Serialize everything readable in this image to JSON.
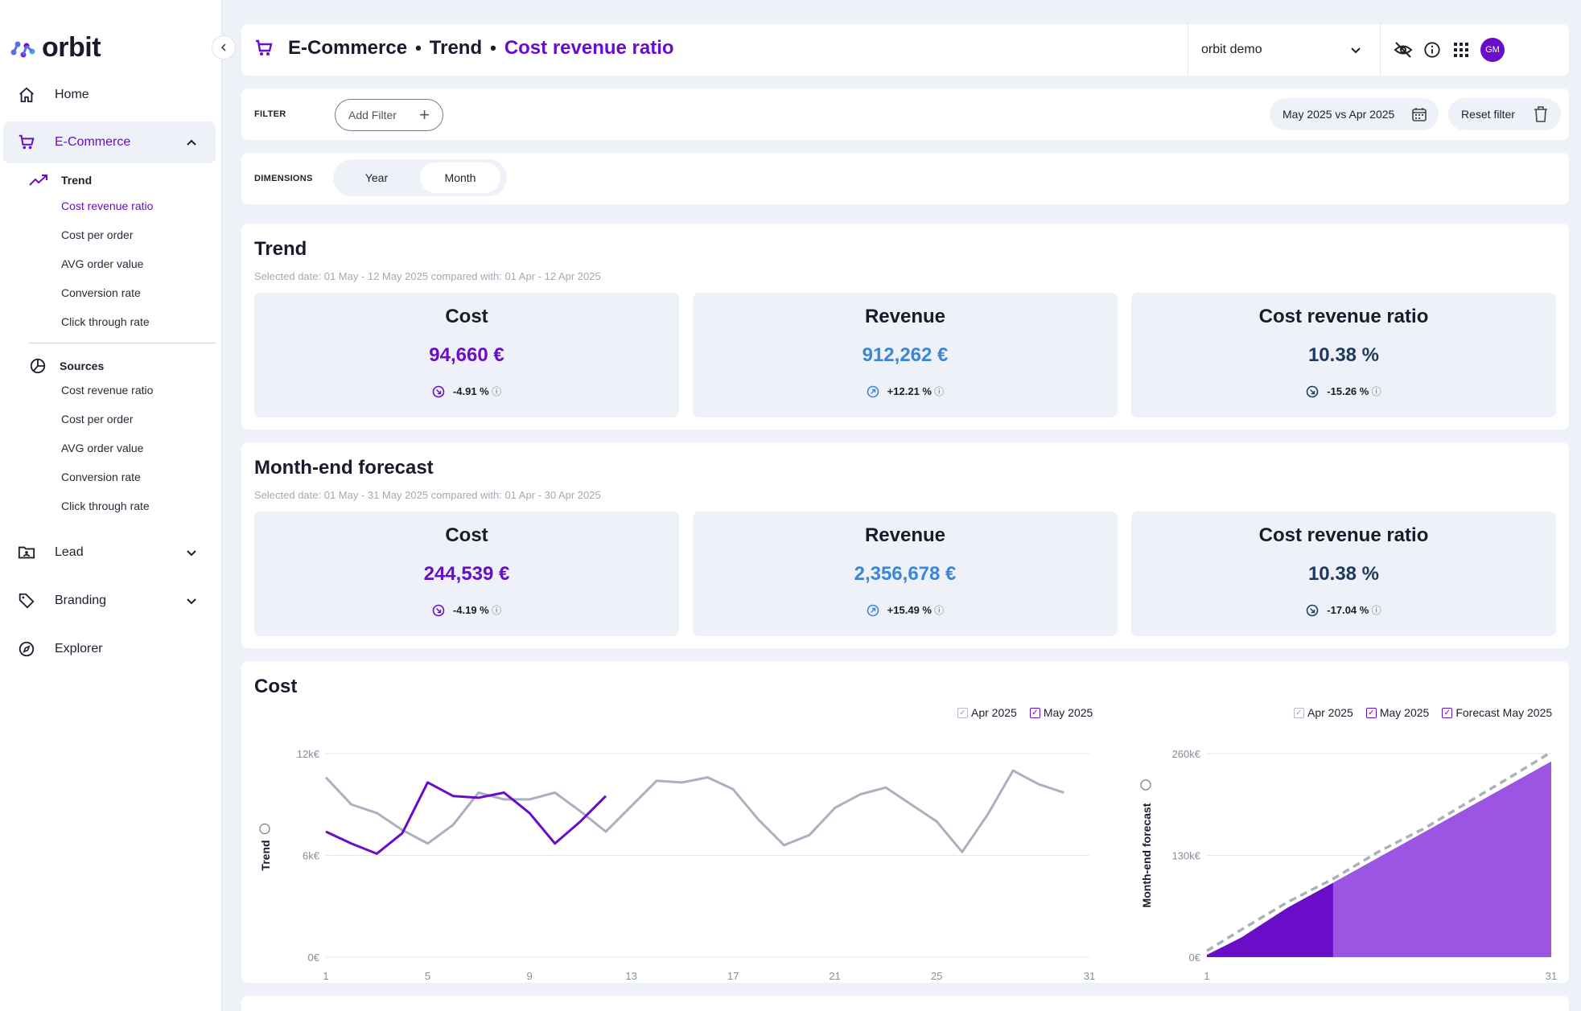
{
  "app": {
    "logo_text": "orbit"
  },
  "sidebar": {
    "items": [
      {
        "label": "Home",
        "icon": "home-icon"
      },
      {
        "label": "E-Commerce",
        "icon": "cart-icon"
      },
      {
        "label": "Lead",
        "icon": "folder-user-icon"
      },
      {
        "label": "Branding",
        "icon": "tag-icon"
      },
      {
        "label": "Explorer",
        "icon": "compass-icon"
      }
    ],
    "trend": {
      "label": "Trend",
      "items": [
        "Cost revenue ratio",
        "Cost per order",
        "AVG order value",
        "Conversion rate",
        "Click through rate"
      ]
    },
    "sources": {
      "label": "Sources",
      "items": [
        "Cost revenue ratio",
        "Cost per order",
        "AVG order value",
        "Conversion rate",
        "Click through rate"
      ]
    }
  },
  "header": {
    "crumb1": "E-Commerce",
    "sep": "•",
    "crumb2": "Trend",
    "crumb3": "Cost revenue ratio",
    "tenant": "orbit demo",
    "avatar": "GM"
  },
  "filter": {
    "label": "FILTER",
    "add_label": "Add Filter",
    "date_range": "May 2025 vs Apr 2025",
    "reset_label": "Reset filter"
  },
  "dimensions": {
    "label": "DIMENSIONS",
    "options": [
      "Year",
      "Month"
    ],
    "selected": "Month"
  },
  "trend_section": {
    "title": "Trend",
    "subtitle": "Selected date: 01 May - 12 May 2025 compared with: 01 Apr - 12 Apr 2025",
    "kpis": [
      {
        "title": "Cost",
        "value": "94,660 €",
        "delta": "-4.91 %",
        "color": "#6a0dc8"
      },
      {
        "title": "Revenue",
        "value": "912,262 €",
        "delta": "+12.21 %",
        "color": "#3b86d6"
      },
      {
        "title": "Cost revenue ratio",
        "value": "10.38 %",
        "delta": "-15.26 %",
        "color": "#1f3a5f"
      }
    ]
  },
  "forecast_section": {
    "title": "Month-end forecast",
    "subtitle": "Selected date: 01 May - 31 May 2025 compared with: 01 Apr - 30 Apr 2025",
    "kpis": [
      {
        "title": "Cost",
        "value": "244,539 €",
        "delta": "-4.19 %",
        "color": "#6a0dc8"
      },
      {
        "title": "Revenue",
        "value": "2,356,678 €",
        "delta": "+15.49 %",
        "color": "#3b86d6"
      },
      {
        "title": "Cost revenue ratio",
        "value": "10.38 %",
        "delta": "-17.04 %",
        "color": "#1f3a5f"
      }
    ]
  },
  "cost_section": {
    "title": "Cost"
  },
  "chart_data": [
    {
      "type": "line",
      "ylabel": "Trend",
      "ytick_labels": [
        "0€",
        "6k€",
        "12k€"
      ],
      "ylim": [
        0,
        12000
      ],
      "xticks": [
        1,
        5,
        9,
        13,
        17,
        21,
        25,
        31
      ],
      "xlim": [
        1,
        31
      ],
      "series": [
        {
          "name": "Apr 2025",
          "color": "#a9b1c0",
          "x": [
            1,
            2,
            3,
            4,
            5,
            6,
            7,
            8,
            9,
            10,
            11,
            12,
            13,
            14,
            15,
            16,
            17,
            18,
            19,
            20,
            21,
            22,
            23,
            24,
            25,
            26,
            27,
            28,
            29,
            30
          ],
          "values": [
            10600,
            9000,
            8500,
            7500,
            6700,
            7800,
            9700,
            9300,
            9300,
            9700,
            8600,
            7400,
            8900,
            10400,
            10300,
            10600,
            9900,
            8100,
            6600,
            7200,
            8800,
            9600,
            10000,
            9000,
            8000,
            6200,
            8400,
            11000,
            10200,
            9700
          ]
        },
        {
          "name": "May 2025",
          "color": "#6a0dc8",
          "x": [
            1,
            2,
            3,
            4,
            5,
            6,
            7,
            8,
            9,
            10,
            11,
            12
          ],
          "values": [
            7400,
            6700,
            6100,
            7300,
            10300,
            9500,
            9400,
            9700,
            8500,
            6700,
            8000,
            9500
          ]
        }
      ]
    },
    {
      "type": "area",
      "ylabel": "Month-end forecast",
      "ytick_labels": [
        "0€",
        "130k€",
        "260k€"
      ],
      "ylim": [
        0,
        260000
      ],
      "xticks": [
        1,
        31
      ],
      "xlim": [
        1,
        31
      ],
      "series": [
        {
          "name": "Apr 2025",
          "color": "#a9b1c0",
          "style": "dashed",
          "x": [
            1,
            4,
            8,
            12,
            16,
            20,
            24,
            28,
            31
          ],
          "values": [
            8000,
            35000,
            70000,
            100000,
            135000,
            165000,
            200000,
            235000,
            262000
          ]
        },
        {
          "name": "May 2025",
          "color": "#6a0dc8",
          "x": [
            1,
            4,
            8,
            12
          ],
          "values": [
            3000,
            25000,
            63000,
            95000
          ]
        },
        {
          "name": "Forecast May 2025",
          "color": "#9b55e2",
          "x": [
            12,
            31
          ],
          "values": [
            95000,
            250000
          ]
        }
      ]
    }
  ]
}
